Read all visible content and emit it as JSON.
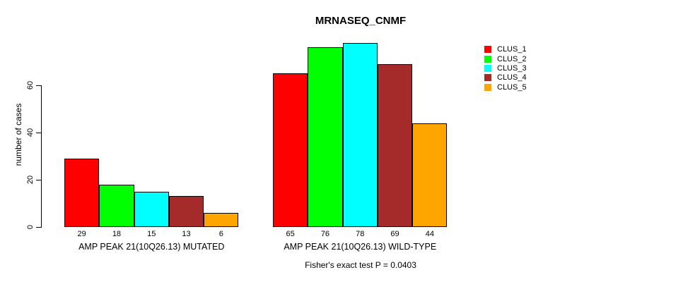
{
  "chart_data": {
    "type": "bar",
    "title": "MRNASEQ_CNMF",
    "ylabel": "number of cases",
    "xlabel": "",
    "yticks": [
      0,
      20,
      40,
      60
    ],
    "ylim": [
      0,
      79
    ],
    "grid": false,
    "legend_position": "right",
    "bar_value_labels": true,
    "categories": [
      "AMP PEAK 21(10Q26.13) MUTATED",
      "AMP PEAK 21(10Q26.13) WILD-TYPE"
    ],
    "series": [
      {
        "name": "CLUS_1",
        "color": "#FF0000",
        "values": [
          29,
          65
        ]
      },
      {
        "name": "CLUS_2",
        "color": "#00FF00",
        "values": [
          18,
          76
        ]
      },
      {
        "name": "CLUS_3",
        "color": "#00FFFF",
        "values": [
          15,
          78
        ]
      },
      {
        "name": "CLUS_4",
        "color": "#A52A2A",
        "values": [
          13,
          69
        ]
      },
      {
        "name": "CLUS_5",
        "color": "#FFA500",
        "values": [
          6,
          44
        ]
      }
    ],
    "annotation": "Fisher's exact test P = 0.0403"
  },
  "colors": {
    "background": "#FFFFFF",
    "axis": "#000000",
    "text": "#000000"
  }
}
